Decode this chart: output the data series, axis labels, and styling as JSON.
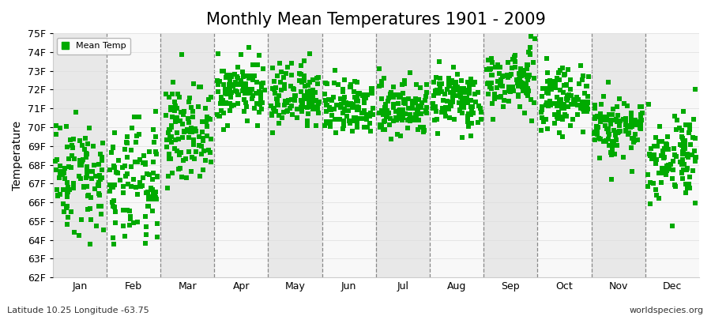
{
  "title": "Monthly Mean Temperatures 1901 - 2009",
  "ylabel": "Temperature",
  "xlabel": "",
  "footer_left": "Latitude 10.25 Longitude -63.75",
  "footer_right": "worldspecies.org",
  "legend_label": "Mean Temp",
  "marker_color": "#00aa00",
  "marker": "s",
  "marker_size": 4,
  "ylim": [
    62,
    75
  ],
  "yticks": [
    62,
    63,
    64,
    65,
    66,
    67,
    68,
    69,
    70,
    71,
    72,
    73,
    74,
    75
  ],
  "ytick_labels": [
    "62F",
    "63F",
    "64F",
    "65F",
    "66F",
    "67F",
    "68F",
    "69F",
    "70F",
    "71F",
    "72F",
    "73F",
    "74F",
    "75F"
  ],
  "month_names": [
    "Jan",
    "Feb",
    "Mar",
    "Apr",
    "May",
    "Jun",
    "Jul",
    "Aug",
    "Sep",
    "Oct",
    "Nov",
    "Dec"
  ],
  "bg_color": "#ffffff",
  "band_color_1": "#e8e8e8",
  "band_color_2": "#f8f8f8",
  "grid_line_color": "#888888",
  "title_fontsize": 15,
  "axis_fontsize": 10,
  "tick_fontsize": 9,
  "month_means": [
    67.5,
    66.8,
    69.8,
    72.0,
    71.5,
    71.0,
    71.0,
    71.5,
    72.5,
    71.5,
    70.0,
    68.5
  ],
  "month_stds": [
    1.5,
    1.6,
    1.2,
    0.8,
    0.8,
    0.7,
    0.7,
    0.7,
    0.7,
    0.7,
    0.8,
    1.2
  ],
  "seed": 42,
  "n_years": 109
}
